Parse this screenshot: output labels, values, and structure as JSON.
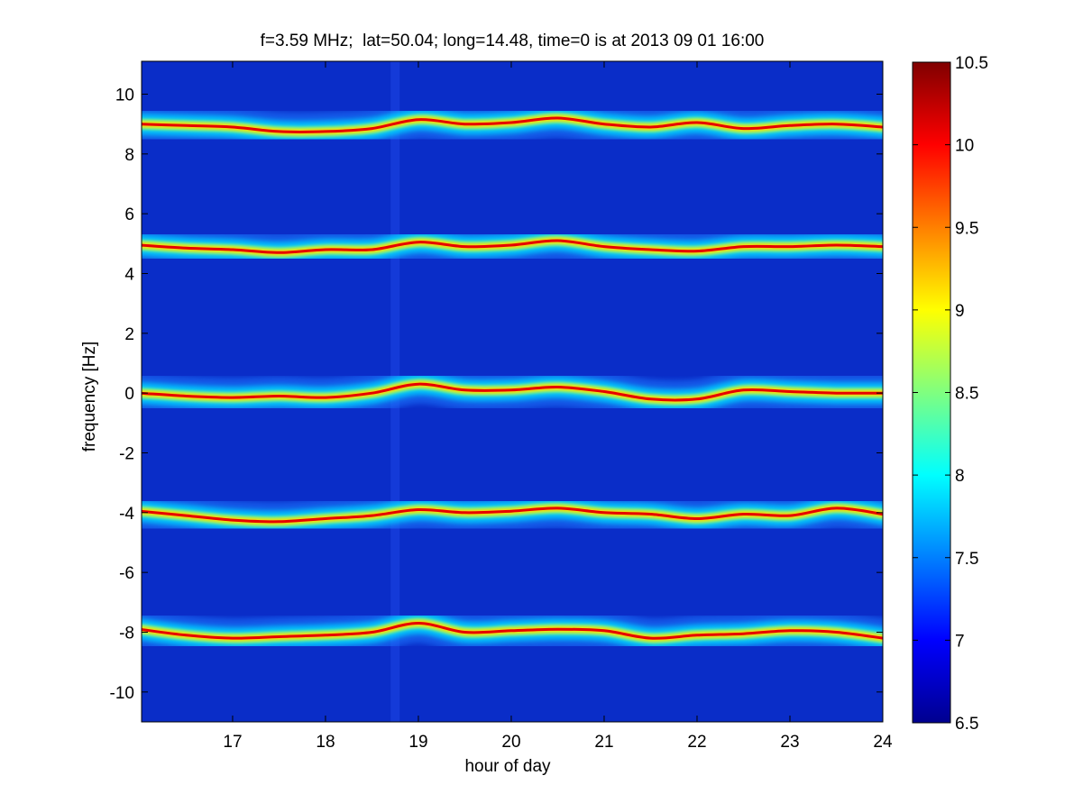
{
  "chart_data": {
    "type": "heatmap",
    "title": "f=3.59 MHz;  lat=50.04; long=14.48, time=0 is at 2013 09 01 16:00",
    "xlabel": "hour of day",
    "ylabel": "frequency [Hz]",
    "xlim": [
      16.02,
      24.0
    ],
    "ylim": [
      -11.0,
      11.1
    ],
    "xticks": [
      17,
      18,
      19,
      20,
      21,
      22,
      23,
      24
    ],
    "yticks": [
      -10,
      -8,
      -6,
      -4,
      -2,
      0,
      2,
      4,
      6,
      8,
      10
    ],
    "colorbar": {
      "range": [
        6.5,
        10.5
      ],
      "ticks": [
        6.5,
        7,
        7.5,
        8,
        8.5,
        9,
        9.5,
        10,
        10.5
      ],
      "colormap": "jet"
    },
    "data_gap_hour": 18.75,
    "series": [
      {
        "center_frequency": 9,
        "hours": [
          16.0,
          16.5,
          17.0,
          17.5,
          18.0,
          18.5,
          19.0,
          19.5,
          20.0,
          20.5,
          21.0,
          21.5,
          22.0,
          22.5,
          23.0,
          23.5,
          24.0
        ],
        "frequency": [
          9.0,
          8.95,
          8.9,
          8.75,
          8.75,
          8.85,
          9.15,
          9.0,
          9.05,
          9.2,
          9.0,
          8.9,
          9.05,
          8.85,
          8.95,
          9.0,
          8.9
        ]
      },
      {
        "center_frequency": 5,
        "hours": [
          16.0,
          16.5,
          17.0,
          17.5,
          18.0,
          18.5,
          19.0,
          19.5,
          20.0,
          20.5,
          21.0,
          21.5,
          22.0,
          22.5,
          23.0,
          23.5,
          24.0
        ],
        "frequency": [
          4.95,
          4.85,
          4.8,
          4.7,
          4.8,
          4.8,
          5.05,
          4.9,
          4.95,
          5.1,
          4.9,
          4.8,
          4.75,
          4.9,
          4.9,
          4.95,
          4.9
        ]
      },
      {
        "center_frequency": 0,
        "hours": [
          16.0,
          16.5,
          17.0,
          17.5,
          18.0,
          18.5,
          19.0,
          19.5,
          20.0,
          20.5,
          21.0,
          21.5,
          22.0,
          22.5,
          23.0,
          23.5,
          24.0
        ],
        "frequency": [
          0.0,
          -0.1,
          -0.15,
          -0.1,
          -0.15,
          0.0,
          0.3,
          0.1,
          0.1,
          0.2,
          0.05,
          -0.2,
          -0.2,
          0.1,
          0.05,
          0.0,
          0.0
        ]
      },
      {
        "center_frequency": -4,
        "hours": [
          16.0,
          16.5,
          17.0,
          17.5,
          18.0,
          18.5,
          19.0,
          19.5,
          20.0,
          20.5,
          21.0,
          21.5,
          22.0,
          22.5,
          23.0,
          23.5,
          24.0
        ],
        "frequency": [
          -3.95,
          -4.1,
          -4.25,
          -4.3,
          -4.2,
          -4.1,
          -3.9,
          -4.0,
          -3.95,
          -3.85,
          -4.0,
          -4.05,
          -4.2,
          -4.05,
          -4.1,
          -3.85,
          -4.05
        ]
      },
      {
        "center_frequency": -8,
        "hours": [
          16.0,
          16.5,
          17.0,
          17.5,
          18.0,
          18.5,
          19.0,
          19.5,
          20.0,
          20.5,
          21.0,
          21.5,
          22.0,
          22.5,
          23.0,
          23.5,
          24.0
        ],
        "frequency": [
          -7.9,
          -8.1,
          -8.2,
          -8.15,
          -8.1,
          -8.0,
          -7.7,
          -8.0,
          -7.95,
          -7.9,
          -7.95,
          -8.2,
          -8.1,
          -8.05,
          -7.95,
          -8.0,
          -8.2
        ]
      }
    ]
  }
}
